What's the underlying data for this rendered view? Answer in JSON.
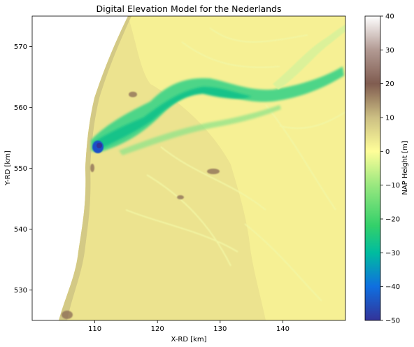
{
  "chart_data": {
    "type": "heatmap",
    "title": "Digital Elevation Model for the Nederlands",
    "xlabel": "X-RD [km]",
    "ylabel": "Y-RD [km]",
    "xlim": [
      100,
      150
    ],
    "ylim": [
      525,
      575
    ],
    "xticks": [
      110,
      120,
      130,
      140
    ],
    "yticks": [
      530,
      540,
      550,
      560,
      570
    ],
    "grid": false,
    "colorbar": {
      "label": "NAP Height [m]",
      "range": [
        -50,
        40
      ],
      "ticks": [
        40,
        30,
        20,
        10,
        0,
        -10,
        -20,
        -30,
        -40,
        -50
      ],
      "colormap": "terrain",
      "stops": [
        {
          "value": -50,
          "color": "#333399"
        },
        {
          "value": -40,
          "color": "#0f6fe0"
        },
        {
          "value": -30,
          "color": "#00bc9f"
        },
        {
          "value": -22,
          "color": "#33d06a"
        },
        {
          "value": -10,
          "color": "#99e87f"
        },
        {
          "value": 0,
          "color": "#fffe99"
        },
        {
          "value": 10,
          "color": "#ccbf83"
        },
        {
          "value": 20,
          "color": "#805c50"
        },
        {
          "value": 30,
          "color": "#b29a93"
        },
        {
          "value": 40,
          "color": "#ffffff"
        }
      ]
    },
    "data_extent": {
      "land_color": "#e8df8e",
      "seabed_color": "#f6f094",
      "deepest_channel_value": -45,
      "highest_dune_value": 15
    }
  }
}
